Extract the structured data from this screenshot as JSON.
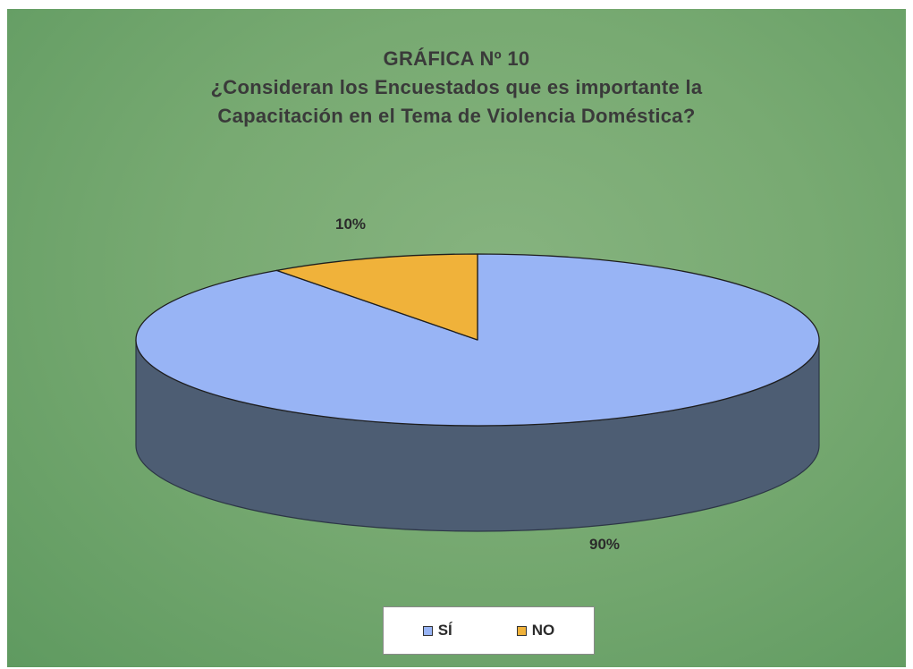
{
  "chart_data": {
    "type": "pie",
    "title_lines": [
      "GRÁFICA Nº 10",
      "¿Consideran los Encuestados que es importante la",
      "Capacitación en el Tema de Violencia Doméstica?"
    ],
    "categories": [
      "SÍ",
      "NO"
    ],
    "values": [
      90,
      10
    ],
    "data_labels": [
      "90%",
      "10%"
    ],
    "colors": [
      "#98b4f5",
      "#f0b23a"
    ],
    "legend_position": "bottom",
    "style": "3d"
  }
}
